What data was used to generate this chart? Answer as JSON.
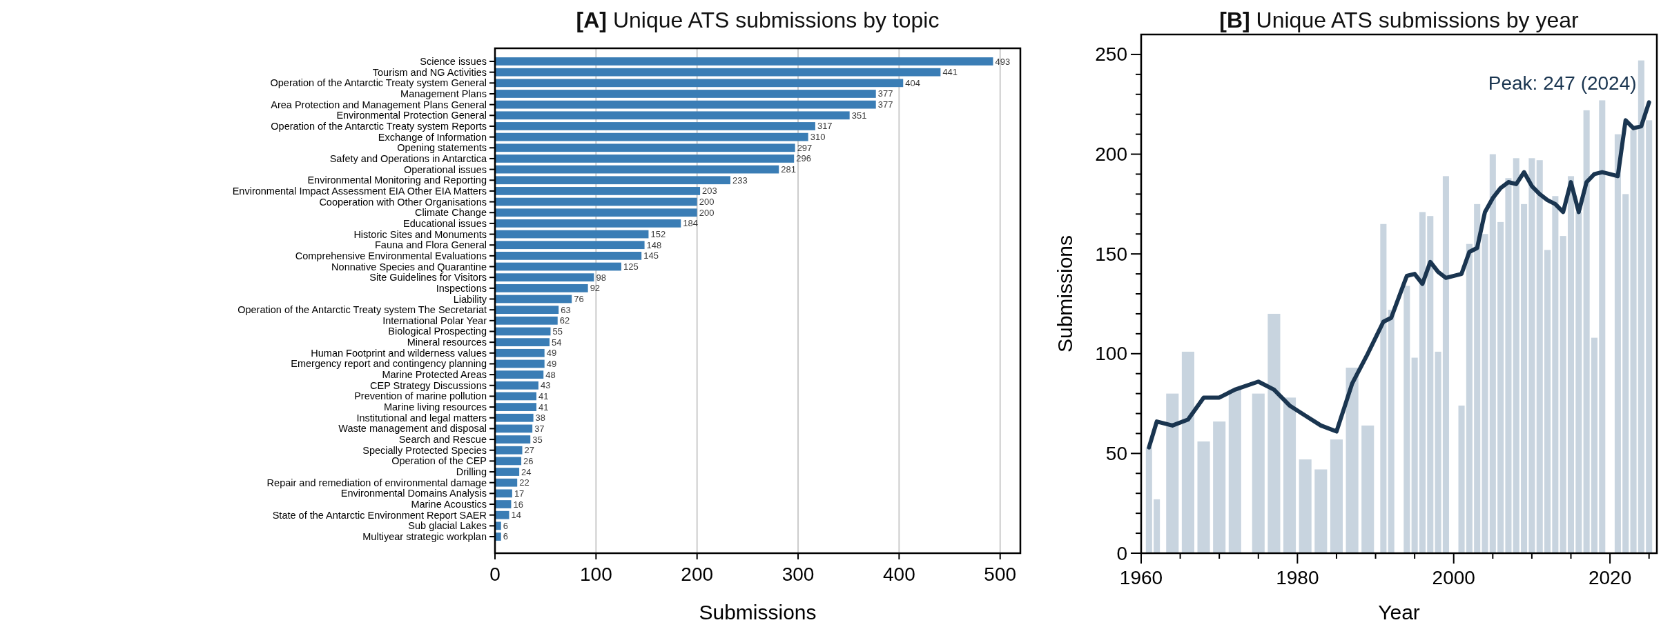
{
  "chart_data": [
    {
      "type": "bar",
      "orientation": "horizontal",
      "title": "[A] Unique ATS submissions by topic",
      "xlabel": "Submissions",
      "categories": [
        "Science issues",
        "Tourism and NG  Activities",
        "Operation of the Antarctic Treaty system General",
        "Management Plans",
        "Area Protection and Management Plans General",
        "Environmental Protection General",
        "Operation of the Antarctic Treaty system Reports",
        "Exchange of Information",
        "Opening statements",
        "Safety and Operations in Antarctica",
        "Operational issues",
        "Environmental Monitoring and Reporting",
        "Environmental Impact Assessment EIA Other EIA Matters",
        "Cooperation with Other Organisations",
        "Climate Change",
        "Educational issues",
        "Historic Sites and Monuments",
        "Fauna and Flora  General",
        "Comprehensive Environmental Evaluations",
        "Nonnative Species and Quarantine",
        "Site Guidelines for Visitors",
        "Inspections",
        "Liability",
        "Operation of the Antarctic Treaty system The Secretariat",
        "International Polar Year",
        "Biological Prospecting",
        "Mineral resources",
        "Human Footprint and wilderness values",
        "Emergency report and contingency planning",
        "Marine Protected Areas",
        "CEP Strategy Discussions",
        "Prevention of marine pollution",
        "Marine living resources",
        "Institutional and legal matters",
        "Waste management and disposal",
        "Search and Rescue",
        "Specially Protected Species",
        "Operation of the CEP",
        "Drilling",
        "Repair and remediation of environmental damage",
        "Environmental Domains Analysis",
        "Marine Acoustics",
        "State of the Antarctic Environment Report SAER",
        "Sub glacial Lakes",
        "Multiyear strategic workplan"
      ],
      "values": [
        493,
        441,
        404,
        377,
        377,
        351,
        317,
        310,
        297,
        296,
        281,
        233,
        203,
        200,
        200,
        184,
        152,
        148,
        145,
        125,
        98,
        92,
        76,
        63,
        62,
        55,
        54,
        49,
        49,
        48,
        43,
        41,
        41,
        38,
        37,
        35,
        27,
        26,
        24,
        22,
        17,
        16,
        14,
        6,
        6
      ],
      "color": "#3a7db5",
      "xlim": [
        0,
        520
      ],
      "xticks": [
        0,
        100,
        200,
        300,
        400,
        500
      ],
      "grid": "x",
      "data_labels": true
    },
    {
      "type": "bar",
      "title": "[B] Unique ATS submissions by year",
      "xlabel": "Year",
      "ylabel": "Submissions",
      "series": [
        {
          "type": "bar",
          "color": "#c8d4df",
          "x": [
            1961,
            1962,
            1964,
            1966,
            1968,
            1970,
            1972,
            1975,
            1977,
            1979,
            1981,
            1983,
            1985,
            1987,
            1989,
            1991,
            1992,
            1994,
            1995,
            1996,
            1997,
            1998,
            1999,
            2001,
            2002,
            2003,
            2004,
            2005,
            2006,
            2007,
            2008,
            2009,
            2010,
            2011,
            2012,
            2013,
            2014,
            2015,
            2016,
            2017,
            2018,
            2019,
            2021,
            2022,
            2023,
            2024,
            2025
          ],
          "values": [
            53,
            27,
            80,
            101,
            56,
            66,
            82,
            80,
            120,
            78,
            47,
            42,
            57,
            93,
            64,
            165,
            122,
            134,
            98,
            171,
            169,
            101,
            189,
            74,
            155,
            175,
            160,
            200,
            166,
            188,
            198,
            175,
            198,
            197,
            152,
            179,
            159,
            189,
            171,
            222,
            108,
            227,
            210,
            180,
            212,
            247,
            217
          ]
        },
        {
          "type": "line",
          "color": "#1a3550",
          "x": [
            1961,
            1962,
            1964,
            1966,
            1968,
            1970,
            1972,
            1975,
            1977,
            1979,
            1981,
            1983,
            1985,
            1987,
            1989,
            1991,
            1992,
            1994,
            1995,
            1996,
            1997,
            1998,
            1999,
            2001,
            2002,
            2003,
            2004,
            2005,
            2006,
            2007,
            2008,
            2009,
            2010,
            2011,
            2012,
            2013,
            2014,
            2015,
            2016,
            2017,
            2018,
            2019,
            2020,
            2021,
            2022,
            2023,
            2024,
            2025
          ],
          "values": [
            53,
            66,
            64,
            67,
            78,
            78,
            82,
            86,
            82,
            74,
            69,
            64,
            61,
            85,
            100,
            116,
            118,
            139,
            140,
            135,
            146,
            141,
            138,
            140,
            151,
            153,
            171,
            178,
            183,
            186,
            185,
            191,
            184,
            180,
            177,
            175,
            171,
            186,
            171,
            186,
            190,
            191,
            190,
            189,
            217,
            213,
            214,
            226
          ]
        }
      ],
      "xlim": [
        1960,
        2026
      ],
      "xticks": [
        1960,
        {
          "value": 1965,
          "label": null
        },
        {
          "value": 1970,
          "label": null
        },
        {
          "value": 1975,
          "label": null
        },
        1980,
        {
          "value": 1985,
          "label": null
        },
        {
          "value": 1990,
          "label": null
        },
        {
          "value": 1995,
          "label": null
        },
        2000,
        {
          "value": 2005,
          "label": null
        },
        {
          "value": 2010,
          "label": null
        },
        {
          "value": 2015,
          "label": null
        },
        2020,
        {
          "value": 2025,
          "label": null
        }
      ],
      "ylim": [
        0,
        260
      ],
      "yticks": [
        0,
        {
          "value": 10,
          "label": null
        },
        {
          "value": 20,
          "label": null
        },
        {
          "value": 30,
          "label": null
        },
        {
          "value": 40,
          "label": null
        },
        50,
        {
          "value": 60,
          "label": null
        },
        {
          "value": 70,
          "label": null
        },
        {
          "value": 80,
          "label": null
        },
        {
          "value": 90,
          "label": null
        },
        100,
        {
          "value": 110,
          "label": null
        },
        {
          "value": 120,
          "label": null
        },
        {
          "value": 130,
          "label": null
        },
        {
          "value": 140,
          "label": null
        },
        150,
        {
          "value": 160,
          "label": null
        },
        {
          "value": 170,
          "label": null
        },
        {
          "value": 180,
          "label": null
        },
        {
          "value": 190,
          "label": null
        },
        200,
        {
          "value": 210,
          "label": null
        },
        {
          "value": 220,
          "label": null
        },
        {
          "value": 230,
          "label": null
        },
        {
          "value": 240,
          "label": null
        },
        250
      ],
      "annotations": [
        {
          "text": "Peak: 247 (2024)",
          "x": 2024,
          "y": 247
        }
      ]
    }
  ]
}
